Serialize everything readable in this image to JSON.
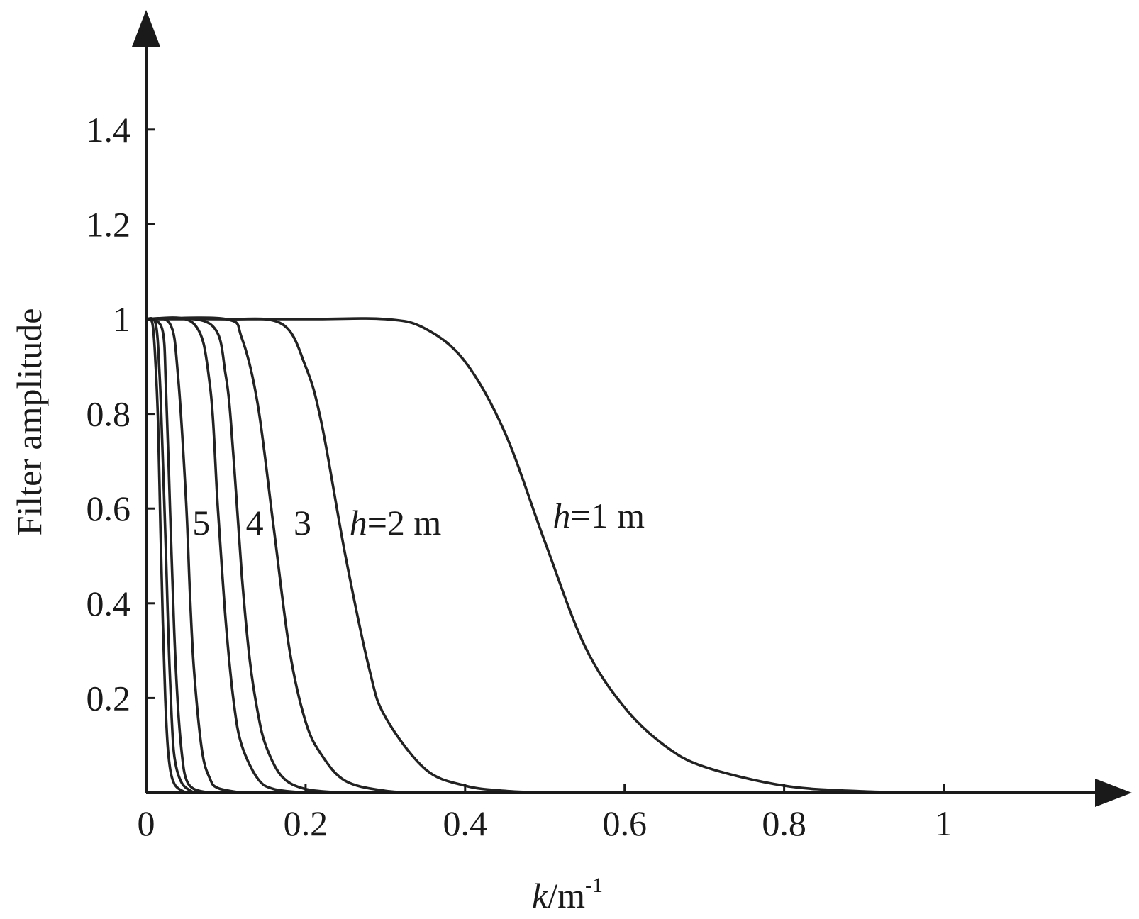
{
  "chart_data": {
    "type": "line",
    "title": "",
    "xlabel": {
      "var": "k",
      "unit": "/m",
      "exp": "-1"
    },
    "ylabel": "Filter amplitude",
    "xlim": [
      0,
      1.18
    ],
    "ylim": [
      0,
      1.58
    ],
    "x_ticks": [
      0,
      0.2,
      0.4,
      0.6,
      0.8,
      1
    ],
    "x_tick_labels": [
      "0",
      "0.2",
      "0.4",
      "0.6",
      "0.8",
      "1"
    ],
    "y_ticks": [
      0.2,
      0.4,
      0.6,
      0.8,
      1,
      1.2,
      1.4
    ],
    "y_tick_labels": [
      "0.2",
      "0.4",
      "0.6",
      "0.8",
      "1",
      "1.2",
      "1.4"
    ],
    "grid": false,
    "series": [
      {
        "id": "h1",
        "x": [
          0,
          0.2,
          0.3,
          0.35,
          0.4,
          0.45,
          0.5,
          0.55,
          0.6,
          0.65,
          0.7,
          0.8,
          0.9,
          1.0
        ],
        "y": [
          1,
          1,
          1,
          0.98,
          0.91,
          0.76,
          0.53,
          0.31,
          0.18,
          0.1,
          0.055,
          0.015,
          0.003,
          0
        ]
      },
      {
        "id": "h2",
        "x": [
          0,
          0.1,
          0.17,
          0.2,
          0.22,
          0.25,
          0.28,
          0.3,
          0.35,
          0.4,
          0.45,
          0.5
        ],
        "y": [
          1,
          1,
          0.99,
          0.9,
          0.78,
          0.5,
          0.26,
          0.16,
          0.05,
          0.015,
          0.004,
          0
        ]
      },
      {
        "id": "h3",
        "x": [
          0,
          0.1,
          0.12,
          0.14,
          0.16,
          0.18,
          0.2,
          0.22,
          0.25,
          0.3,
          0.35
        ],
        "y": [
          1,
          1,
          0.96,
          0.82,
          0.56,
          0.3,
          0.15,
          0.08,
          0.025,
          0.004,
          0
        ]
      },
      {
        "id": "h4",
        "x": [
          0,
          0.08,
          0.1,
          0.11,
          0.12,
          0.13,
          0.14,
          0.15,
          0.17,
          0.2,
          0.25
        ],
        "y": [
          1,
          0.99,
          0.88,
          0.7,
          0.46,
          0.28,
          0.17,
          0.1,
          0.035,
          0.008,
          0
        ]
      },
      {
        "id": "h5",
        "x": [
          0,
          0.06,
          0.08,
          0.09,
          0.1,
          0.11,
          0.12,
          0.14,
          0.16,
          0.2
        ],
        "y": [
          1,
          0.99,
          0.86,
          0.6,
          0.36,
          0.19,
          0.1,
          0.03,
          0.008,
          0
        ]
      },
      {
        "id": "h6",
        "x": [
          0,
          0.03,
          0.04,
          0.05,
          0.055,
          0.06,
          0.07,
          0.08,
          0.09,
          0.12
        ],
        "y": [
          1,
          0.99,
          0.88,
          0.62,
          0.42,
          0.26,
          0.09,
          0.03,
          0.01,
          0
        ]
      },
      {
        "id": "h7",
        "x": [
          0,
          0.02,
          0.025,
          0.03,
          0.035,
          0.04,
          0.045,
          0.05,
          0.06,
          0.08
        ],
        "y": [
          1,
          0.98,
          0.85,
          0.6,
          0.35,
          0.18,
          0.08,
          0.03,
          0.008,
          0
        ]
      },
      {
        "id": "h8",
        "x": [
          0,
          0.012,
          0.017,
          0.02,
          0.025,
          0.028,
          0.032,
          0.036,
          0.045,
          0.06
        ],
        "y": [
          1,
          0.99,
          0.88,
          0.75,
          0.5,
          0.33,
          0.16,
          0.07,
          0.02,
          0
        ]
      },
      {
        "id": "h9",
        "x": [
          0,
          0.008,
          0.012,
          0.015,
          0.018,
          0.021,
          0.024,
          0.028,
          0.035,
          0.05
        ],
        "y": [
          1,
          0.99,
          0.9,
          0.78,
          0.56,
          0.36,
          0.2,
          0.08,
          0.02,
          0
        ]
      }
    ],
    "annotations": [
      {
        "id": "label-h1",
        "var": "h",
        "text": "=1 m",
        "x": 0.51,
        "y": 0.56
      },
      {
        "id": "label-h2",
        "var": "h",
        "text": "=2 m",
        "x": 0.255,
        "y": 0.545
      },
      {
        "id": "label-3",
        "text": "3",
        "x": 0.185,
        "y": 0.545
      },
      {
        "id": "label-4",
        "text": "4",
        "x": 0.125,
        "y": 0.545
      },
      {
        "id": "label-5",
        "text": "5",
        "x": 0.058,
        "y": 0.545
      }
    ]
  }
}
